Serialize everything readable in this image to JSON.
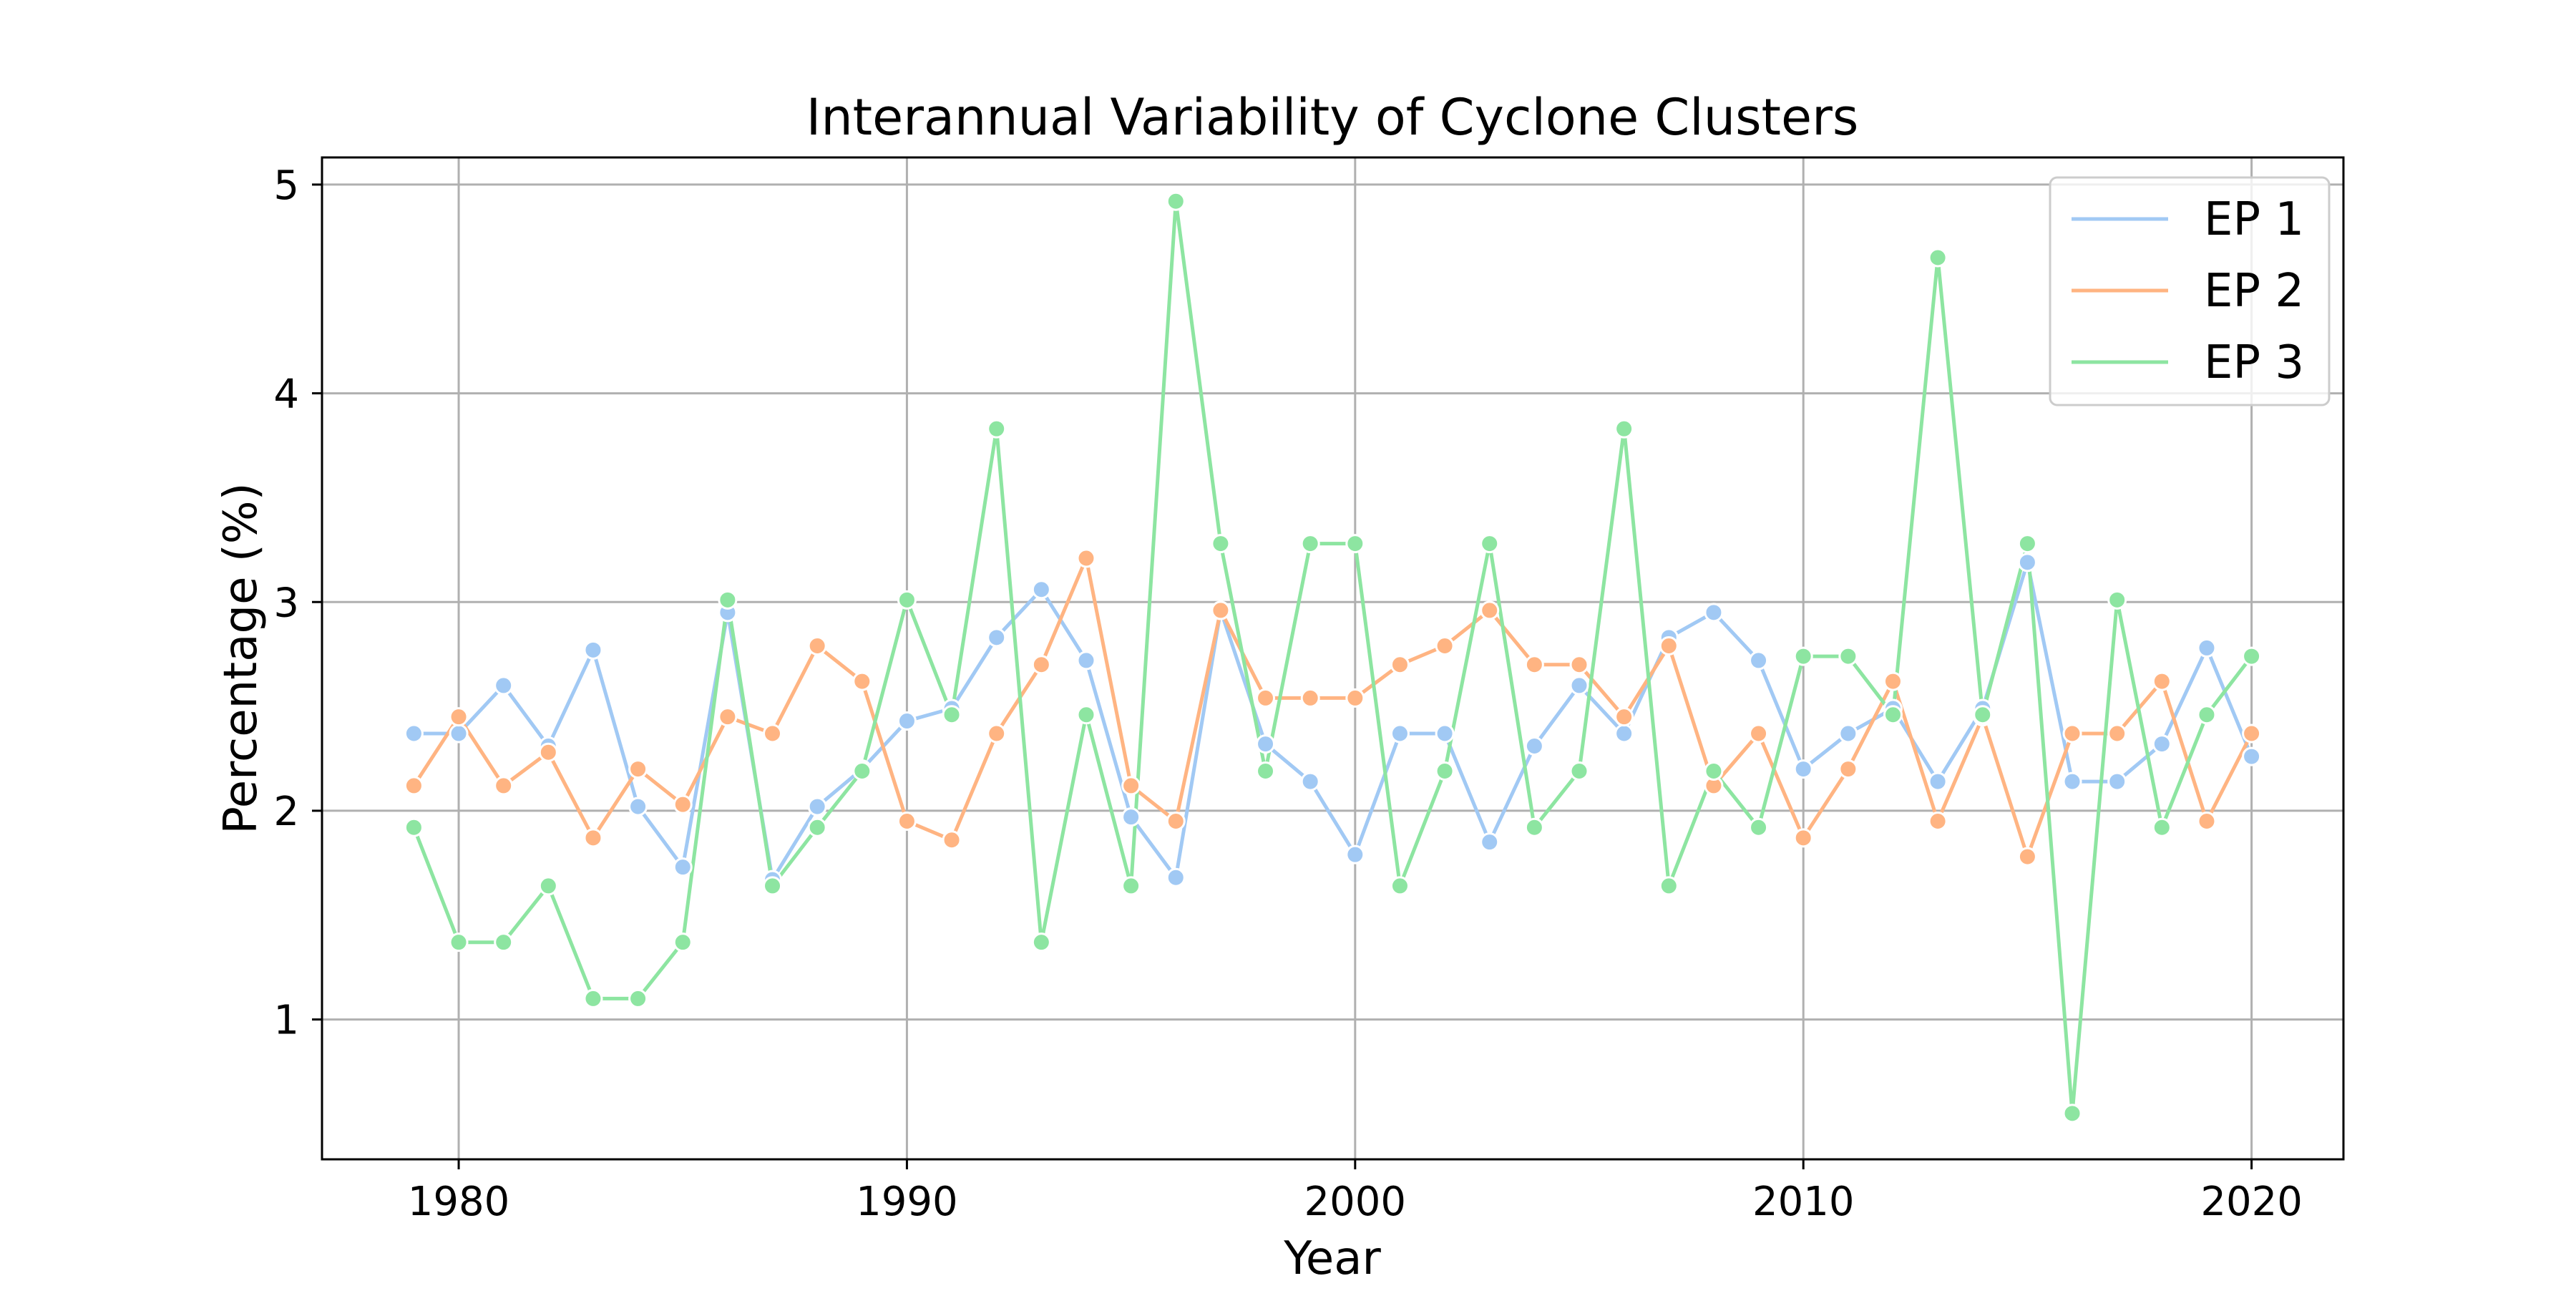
{
  "chart_data": {
    "type": "line",
    "title": "Interannual Variability of Cyclone Clusters",
    "xlabel": "Year",
    "ylabel": "Percentage (%)",
    "xlim": [
      1976.95,
      2022.05
    ],
    "ylim": [
      0.33,
      5.13
    ],
    "xticks": [
      1980,
      1990,
      2000,
      2010,
      2020
    ],
    "yticks": [
      1,
      2,
      3,
      4,
      5
    ],
    "grid": true,
    "legend_position": "top-right",
    "x": [
      1979,
      1980,
      1981,
      1982,
      1983,
      1984,
      1985,
      1986,
      1987,
      1988,
      1989,
      1990,
      1991,
      1992,
      1993,
      1994,
      1995,
      1996,
      1997,
      1998,
      1999,
      2000,
      2001,
      2002,
      2003,
      2004,
      2005,
      2006,
      2007,
      2008,
      2009,
      2010,
      2011,
      2012,
      2013,
      2014,
      2015,
      2016,
      2017,
      2018,
      2019,
      2020
    ],
    "series": [
      {
        "name": "EP 1",
        "color": "#a1c9f4",
        "values": [
          2.37,
          2.37,
          2.6,
          2.31,
          2.77,
          2.02,
          1.73,
          2.95,
          1.67,
          2.02,
          2.2,
          2.43,
          2.49,
          2.83,
          3.06,
          2.72,
          1.97,
          1.68,
          2.96,
          2.32,
          2.14,
          1.79,
          2.37,
          2.37,
          1.85,
          2.31,
          2.6,
          2.37,
          2.83,
          2.95,
          2.72,
          2.2,
          2.37,
          2.49,
          2.14,
          2.49,
          3.19,
          2.14,
          2.14,
          2.32,
          2.78,
          2.26
        ]
      },
      {
        "name": "EP 2",
        "color": "#ffb482",
        "values": [
          2.12,
          2.45,
          2.12,
          2.28,
          1.87,
          2.2,
          2.03,
          2.45,
          2.37,
          2.79,
          2.62,
          1.95,
          1.86,
          2.37,
          2.7,
          3.21,
          2.12,
          1.95,
          2.96,
          2.54,
          2.54,
          2.54,
          2.7,
          2.79,
          2.96,
          2.7,
          2.7,
          2.45,
          2.79,
          2.12,
          2.37,
          1.87,
          2.2,
          2.62,
          1.95,
          2.45,
          1.78,
          2.37,
          2.37,
          2.62,
          1.95,
          2.37
        ]
      },
      {
        "name": "EP 3",
        "color": "#8de5a1",
        "values": [
          1.92,
          1.37,
          1.37,
          1.64,
          1.1,
          1.1,
          1.37,
          3.01,
          1.64,
          1.92,
          2.19,
          3.01,
          2.46,
          3.83,
          1.37,
          2.46,
          1.64,
          4.92,
          3.28,
          2.19,
          3.28,
          3.28,
          1.64,
          2.19,
          3.28,
          1.92,
          2.19,
          3.83,
          1.64,
          2.19,
          1.92,
          2.74,
          2.74,
          2.46,
          4.65,
          2.46,
          3.28,
          0.55,
          3.01,
          1.92,
          2.46,
          2.74
        ]
      }
    ]
  }
}
